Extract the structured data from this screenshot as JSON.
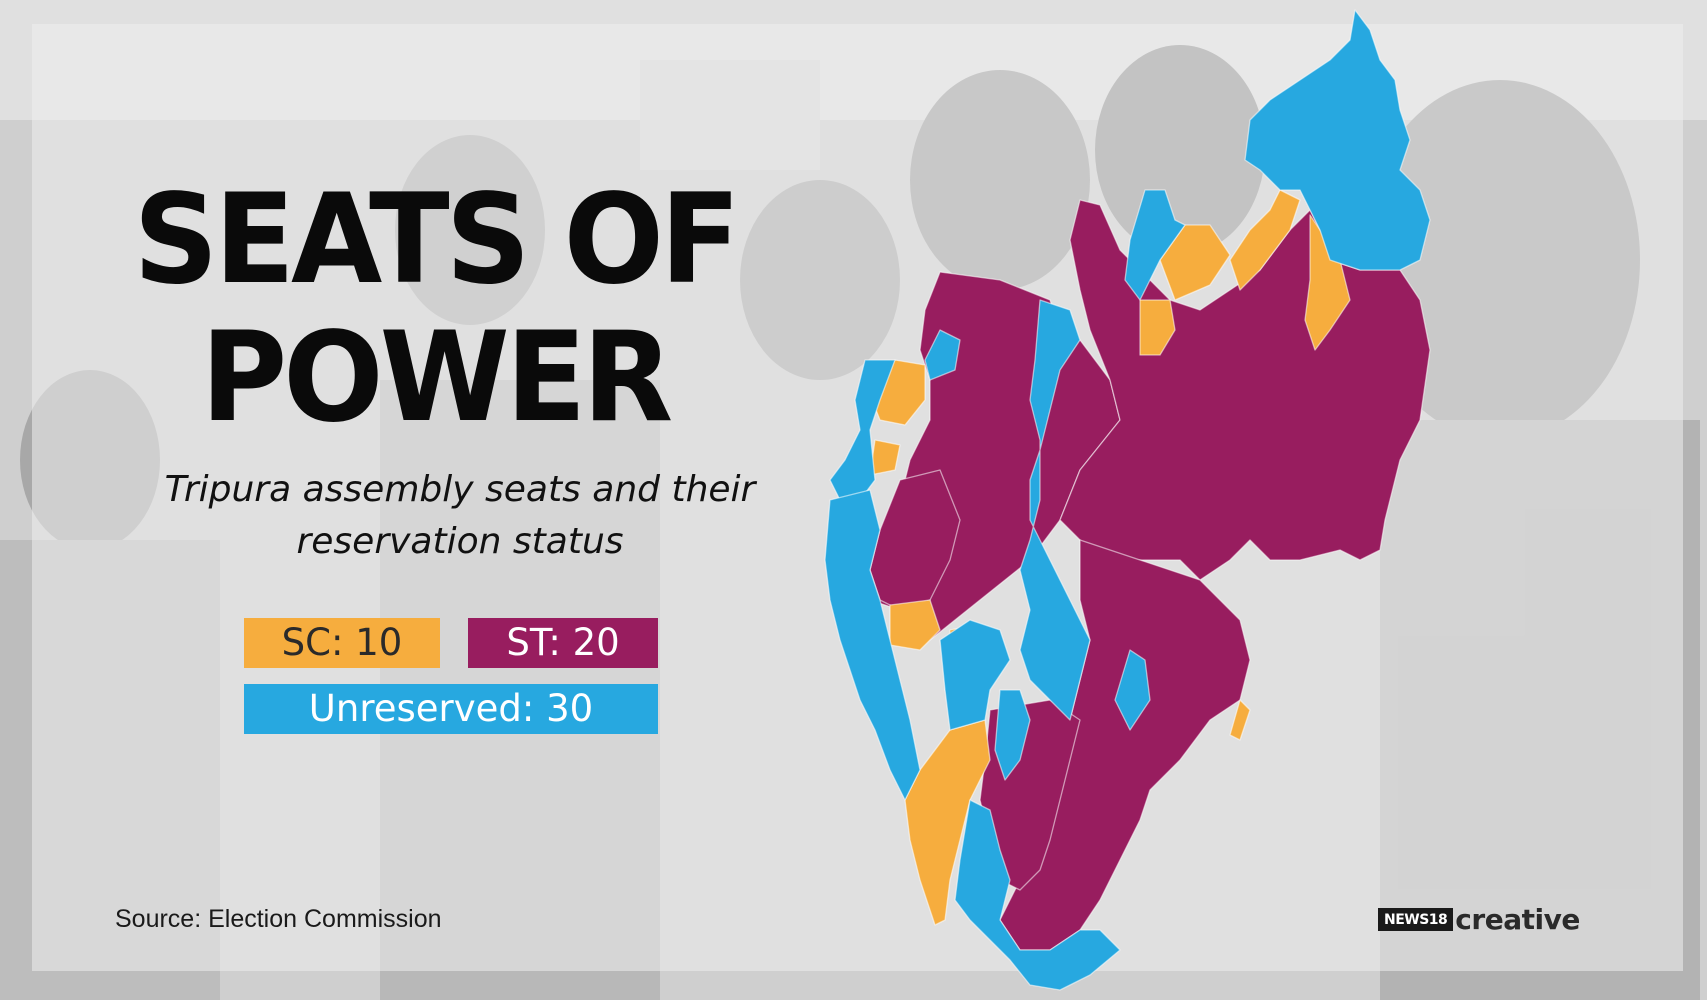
{
  "title_line1": "SEATS OF",
  "title_line2": "POWER",
  "subtitle": "Tripura assembly seats and their reservation status",
  "legend": {
    "sc": "SC: 10",
    "st": "ST: 20",
    "unreserved": "Unreserved: 30"
  },
  "colors": {
    "sc": "#f6ad3e",
    "st": "#981d5f",
    "unreserved": "#27a8e0"
  },
  "source": "Source: Election Commission",
  "logo": {
    "box": "NEWS18",
    "text": "creative"
  }
}
